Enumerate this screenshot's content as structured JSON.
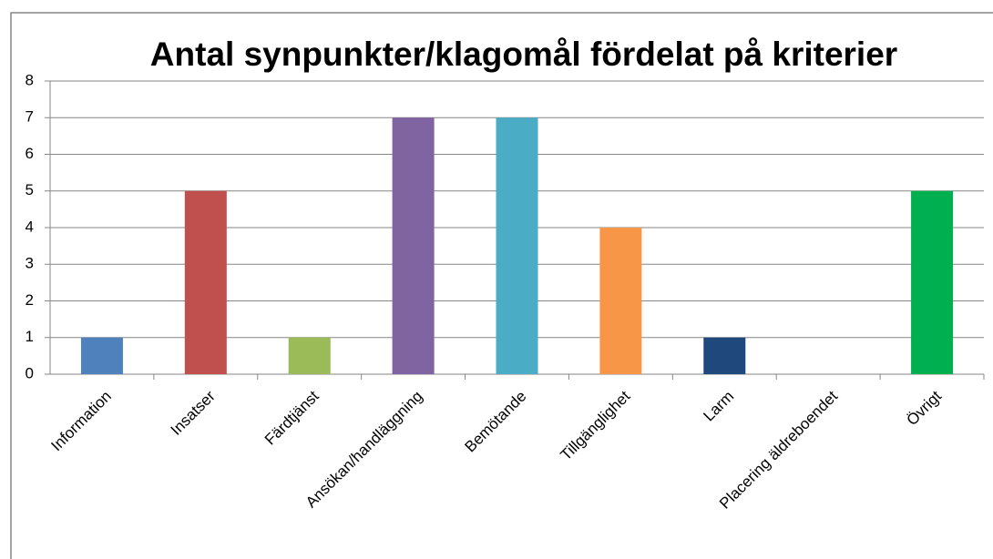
{
  "chart_data": {
    "type": "bar",
    "title": "Antal synpunkter/klagomål fördelat på kriterier",
    "categories": [
      "Information",
      "Insatser",
      "Färdtjänst",
      "Ansökan/handläggning",
      "Bemötande",
      "Tillgänglighet",
      "Larm",
      "Placering äldreboendet",
      "Övrigt"
    ],
    "values": [
      1,
      5,
      1,
      7,
      7,
      4,
      1,
      0,
      5
    ],
    "colors": [
      "#4f81bd",
      "#c0504d",
      "#9bbb59",
      "#8064a2",
      "#4bacc6",
      "#f79646",
      "#1f497d",
      "#c0504d",
      "#00b050"
    ],
    "ylim": [
      0,
      8
    ],
    "yticks": [
      0,
      1,
      2,
      3,
      4,
      5,
      6,
      7,
      8
    ],
    "grid": true
  }
}
